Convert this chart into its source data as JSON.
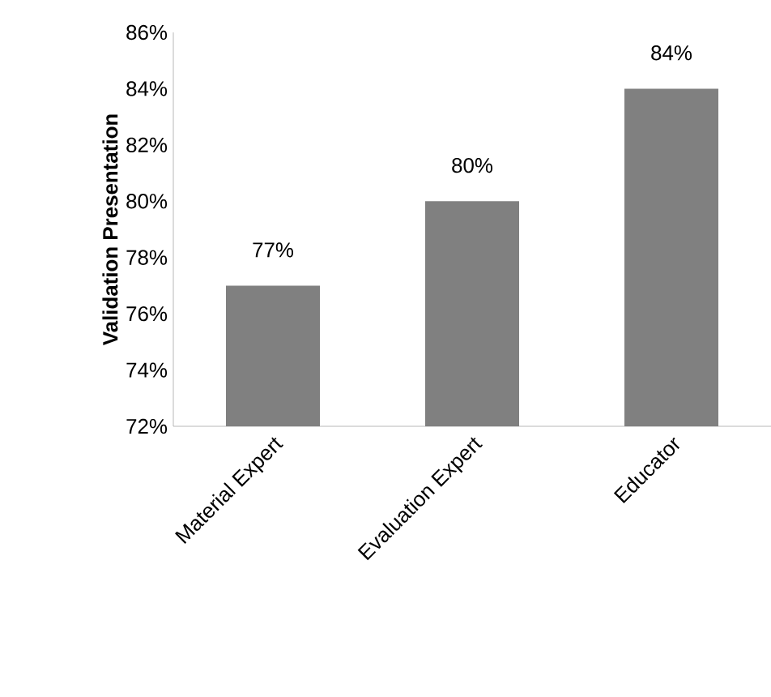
{
  "chart_data": {
    "type": "bar",
    "ylabel": "Validation Presentation",
    "categories": [
      "Material Expert",
      "Evaluation Expert",
      "Educator"
    ],
    "values": [
      77,
      80,
      84
    ],
    "value_labels": [
      "77%",
      "80%",
      "84%"
    ],
    "color": "#808080",
    "ylim": [
      72,
      86
    ],
    "yticks": [
      {
        "value": 72,
        "label": "72%"
      },
      {
        "value": 74,
        "label": "74%"
      },
      {
        "value": 76,
        "label": "76%"
      },
      {
        "value": 78,
        "label": "78%"
      },
      {
        "value": 80,
        "label": "80%"
      },
      {
        "value": 82,
        "label": "82%"
      },
      {
        "value": 84,
        "label": "84%"
      },
      {
        "value": 86,
        "label": "86%"
      }
    ],
    "grid": false
  }
}
